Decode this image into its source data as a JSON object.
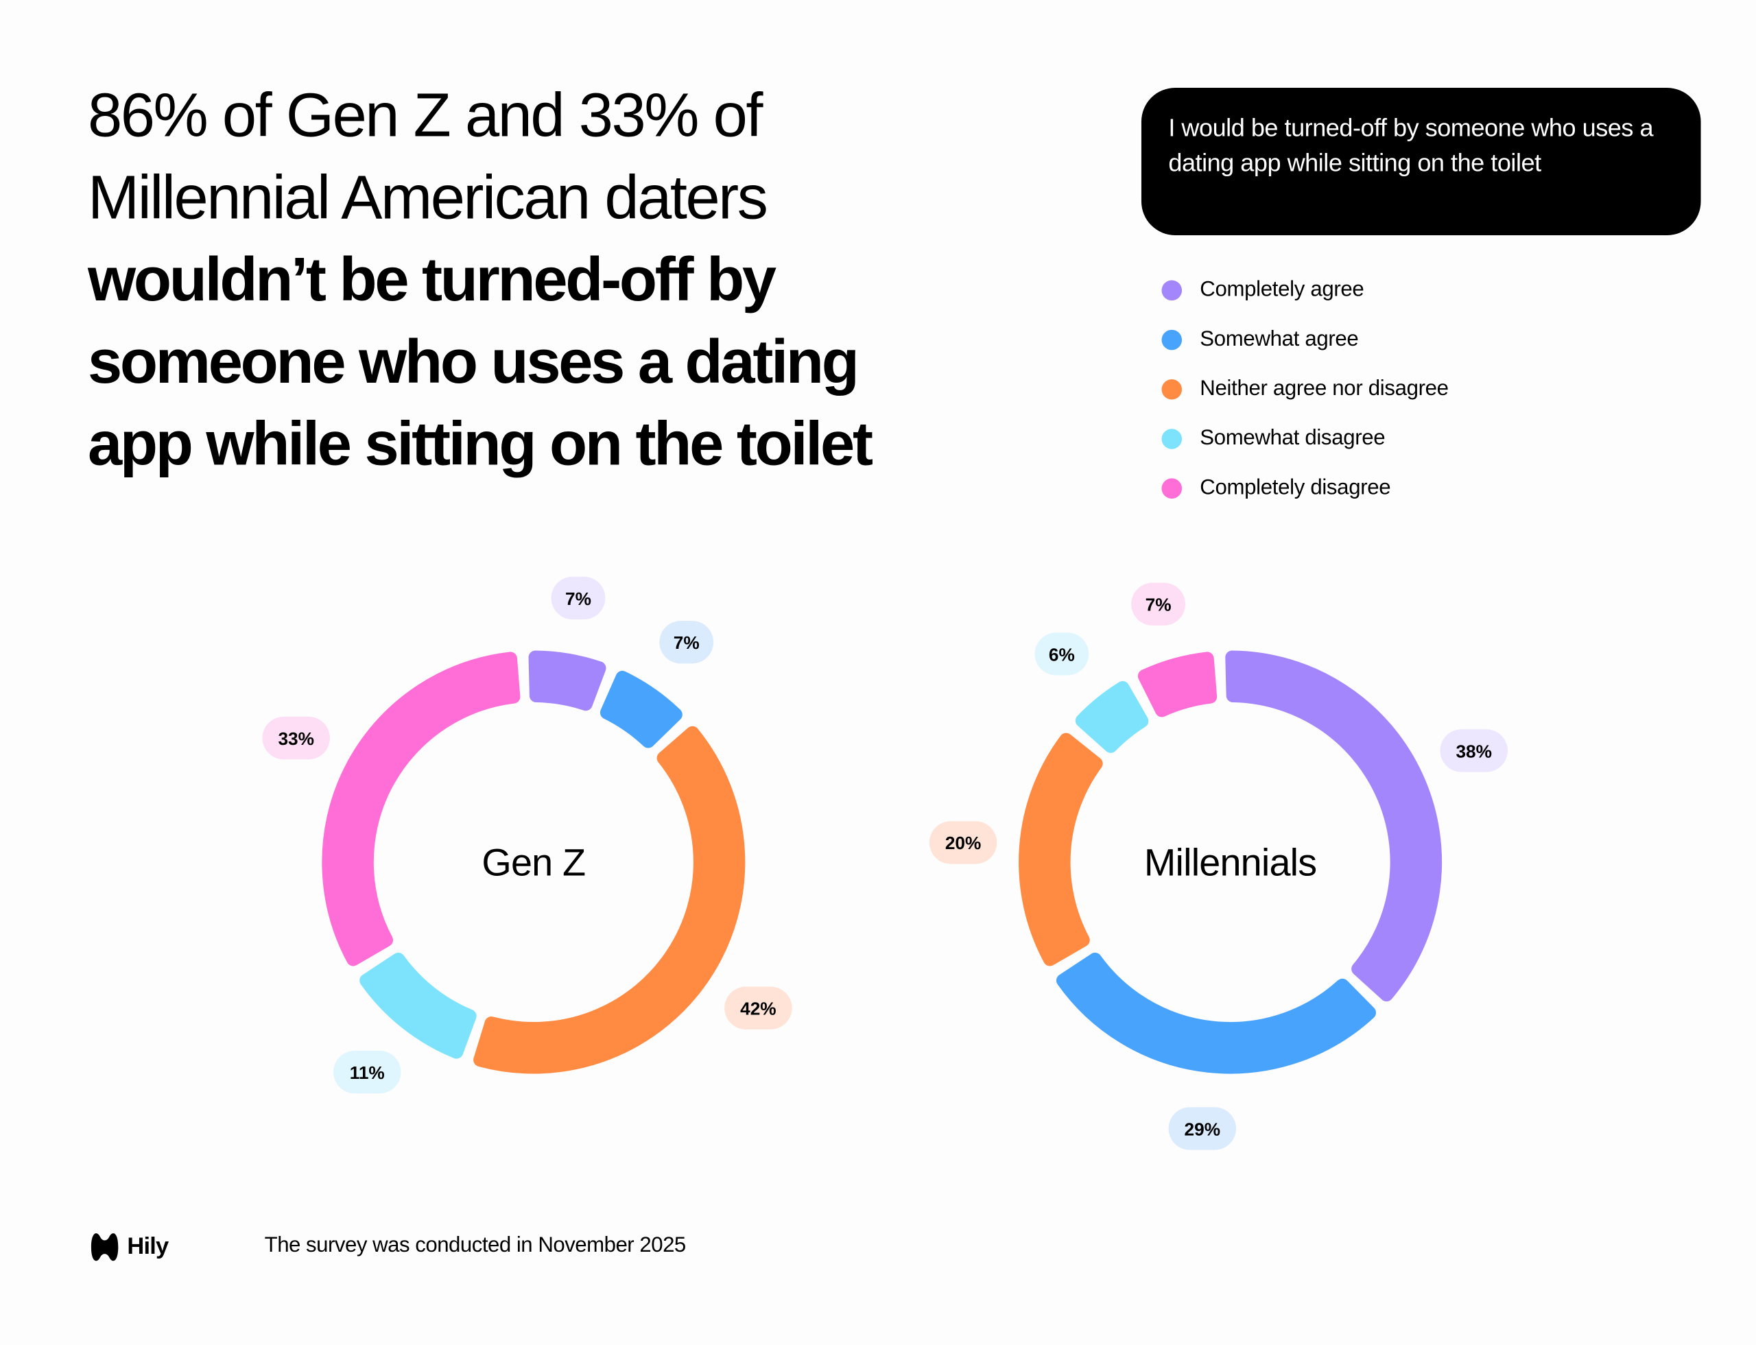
{
  "headline": {
    "regular_lines": [
      "86% of Gen Z and 33% of",
      "Millennial American daters"
    ],
    "bold_lines": [
      "wouldn’t be turned-off by",
      "someone who uses a dating",
      "app while sitting on the toilet"
    ]
  },
  "question": "I would be turned-off by someone who uses a dating app while sitting on the toilet",
  "legend": [
    {
      "label": "Completely agree",
      "color": "#A385FC"
    },
    {
      "label": "Somewhat agree",
      "color": "#47A3FC"
    },
    {
      "label": "Neither agree nor disagree",
      "color": "#FF8A42"
    },
    {
      "label": "Somewhat disagree",
      "color": "#7DE3FC"
    },
    {
      "label": "Completely disagree",
      "color": "#FF6ED6"
    }
  ],
  "label_bg_colors": [
    "#ECE6FE",
    "#DAEBFE",
    "#FEE3D6",
    "#E0F6FE",
    "#FEDEF4"
  ],
  "chart_data": [
    {
      "type": "pie",
      "variant": "donut",
      "title": "Gen Z",
      "categories": [
        "Completely agree",
        "Somewhat agree",
        "Neither agree nor disagree",
        "Somewhat disagree",
        "Completely disagree"
      ],
      "values": [
        7,
        7,
        42,
        11,
        33
      ],
      "labels": [
        "7%",
        "7%",
        "42%",
        "11%",
        "33%"
      ]
    },
    {
      "type": "pie",
      "variant": "donut",
      "title": "Millennials",
      "categories": [
        "Completely agree",
        "Somewhat agree",
        "Neither agree nor disagree",
        "Somewhat disagree",
        "Completely disagree"
      ],
      "values": [
        38,
        29,
        20,
        6,
        7
      ],
      "labels": [
        "38%",
        "29%",
        "20%",
        "6%",
        "7%"
      ]
    }
  ],
  "footer": {
    "logo_text": "Hily",
    "note": "The survey was conducted in November 2025"
  }
}
